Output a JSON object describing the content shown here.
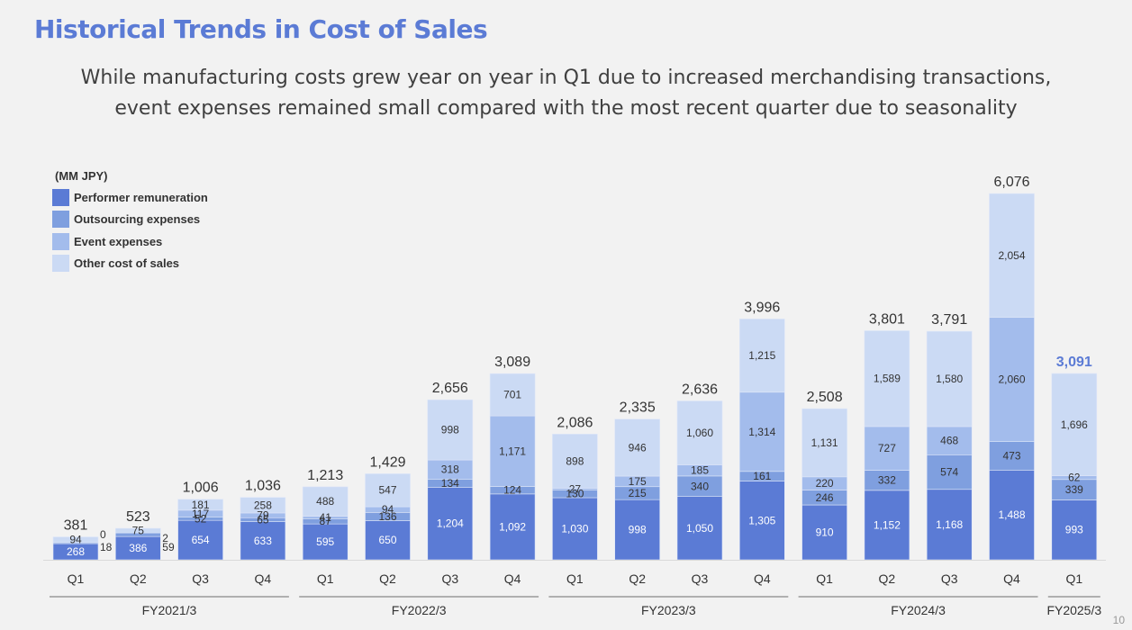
{
  "header": {
    "title": "Historical Trends in Cost of Sales",
    "subtitle_lines": [
      "While manufacturing costs grew year on year in Q1 due to increased merchandising transactions,",
      "event expenses remained small compared with the most recent quarter due to seasonality"
    ]
  },
  "page_number": "10",
  "chart_data": {
    "type": "bar",
    "stacked": true,
    "title": "Historical Trends in Cost of Sales",
    "unit_label": "(MM JPY)",
    "xlabel": "",
    "ylabel": "",
    "ylim": [
      0,
      6076
    ],
    "grid": false,
    "legend_position": "top-left",
    "categories": [
      "Q1",
      "Q2",
      "Q3",
      "Q4",
      "Q1",
      "Q2",
      "Q3",
      "Q4",
      "Q1",
      "Q2",
      "Q3",
      "Q4",
      "Q1",
      "Q2",
      "Q3",
      "Q4",
      "Q1"
    ],
    "groups": [
      {
        "label": "FY2021/3",
        "count": 4
      },
      {
        "label": "FY2022/3",
        "count": 4
      },
      {
        "label": "FY2023/3",
        "count": 4
      },
      {
        "label": "FY2024/3",
        "count": 4
      },
      {
        "label": "FY2025/3",
        "count": 1
      }
    ],
    "series": [
      {
        "name": "Performer remuneration",
        "color": "#5b7bd5",
        "label_color": "#ffffff",
        "values": [
          268,
          386,
          654,
          633,
          595,
          650,
          1204,
          1092,
          1030,
          998,
          1050,
          1305,
          910,
          1152,
          1168,
          1488,
          993
        ]
      },
      {
        "name": "Outsourcing expenses",
        "color": "#7f9fdf",
        "label_color": "#333333",
        "values": [
          18,
          59,
          52,
          65,
          87,
          136,
          134,
          124,
          130,
          215,
          340,
          161,
          246,
          332,
          574,
          473,
          339
        ]
      },
      {
        "name": "Event expenses",
        "color": "#a3bcec",
        "label_color": "#333333",
        "values": [
          0,
          2,
          117,
          79,
          41,
          94,
          318,
          1171,
          27,
          175,
          185,
          1314,
          220,
          727,
          468,
          2060,
          62
        ]
      },
      {
        "name": "Other cost of sales",
        "color": "#cbdaf4",
        "label_color": "#333333",
        "values": [
          94,
          75,
          181,
          258,
          488,
          547,
          998,
          701,
          898,
          946,
          1060,
          1215,
          1131,
          1589,
          1580,
          2054,
          1696
        ]
      }
    ],
    "totals": [
      "381",
      "523",
      "1,006",
      "1,036",
      "1,213",
      "1,429",
      "2,656",
      "3,089",
      "2,086",
      "2,335",
      "2,636",
      "3,996",
      "2,508",
      "3,801",
      "3,791",
      "6,076",
      "3,091"
    ],
    "highlight_total_index": 16,
    "highlight_color": "#5b7bd5",
    "outside_labels": [
      {
        "bar": 0,
        "series": 1,
        "text": "18"
      },
      {
        "bar": 0,
        "series": 2,
        "text": "0"
      },
      {
        "bar": 1,
        "series": 1,
        "text": "59"
      },
      {
        "bar": 1,
        "series": 2,
        "text": "2"
      }
    ]
  }
}
